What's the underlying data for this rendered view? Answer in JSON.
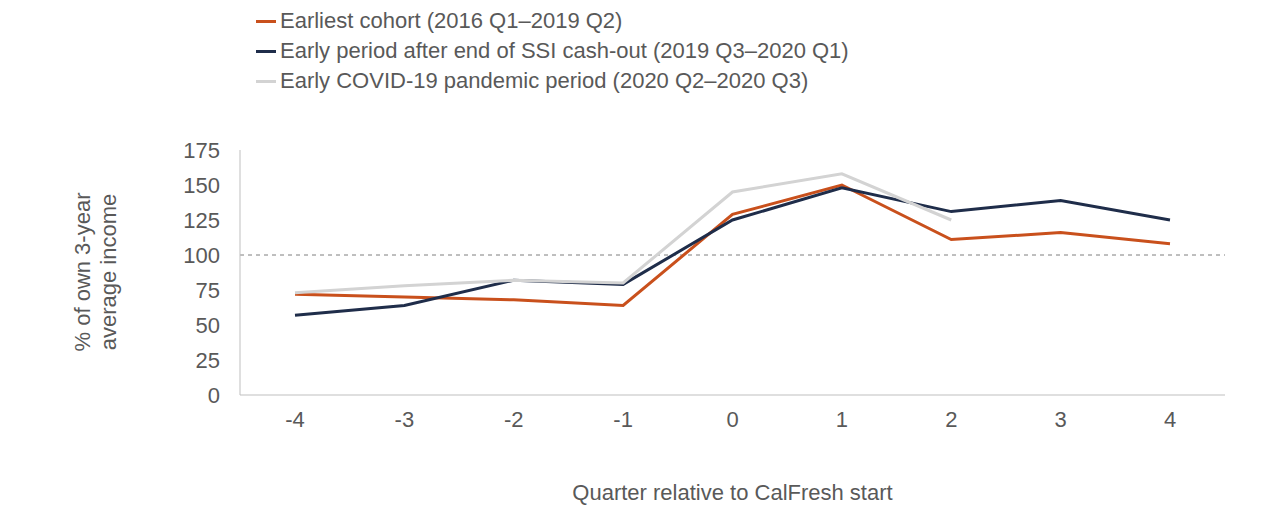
{
  "chart_data": {
    "type": "line",
    "xlabel": "Quarter relative to CalFresh start",
    "ylabel": "% of own 3-year average income",
    "categories": [
      "-4",
      "-3",
      "-2",
      "-1",
      "0",
      "1",
      "2",
      "3",
      "4"
    ],
    "series": [
      {
        "name": "Earliest cohort (2016 Q1–2019 Q2)",
        "color": "#c9501c",
        "values": [
          72,
          70,
          68,
          64,
          129,
          150,
          111,
          116,
          108
        ]
      },
      {
        "name": "Early period after end of SSI cash-out (2019 Q3–2020 Q1)",
        "color": "#1f2d4a",
        "values": [
          57,
          64,
          82,
          79,
          125,
          148,
          131,
          139,
          125
        ]
      },
      {
        "name": "Early COVID-19 pandemic period (2020 Q2–2020 Q3)",
        "color": "#d3d3d3",
        "values": [
          73,
          78,
          82,
          80,
          145,
          158,
          125,
          null,
          null
        ]
      }
    ],
    "reference_line": 100,
    "ylim": [
      0,
      175
    ],
    "yticks": [
      0,
      25,
      50,
      75,
      100,
      125,
      150,
      175
    ],
    "grid": false,
    "legend": "top"
  }
}
